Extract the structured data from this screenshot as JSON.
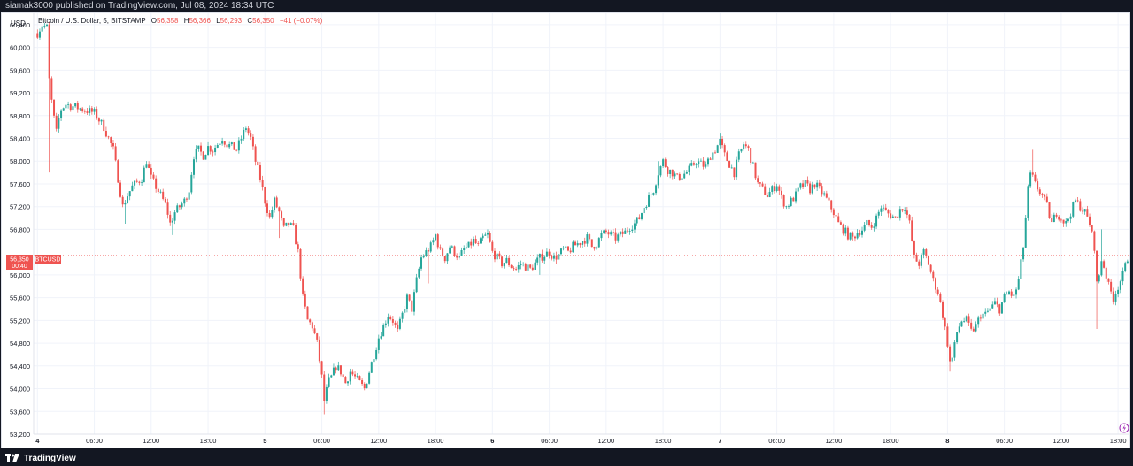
{
  "header": {
    "publish_note": "siamak3000 published on TradingView.com, Jul 08, 2024 18:34 UTC"
  },
  "footer": {
    "brand": "TradingView"
  },
  "legend": {
    "title": "Bitcoin / U.S. Dollar, 5, BITSTAMP",
    "o_label": "O",
    "o_value": "56,358",
    "h_label": "H",
    "h_value": "56,366",
    "l_label": "L",
    "l_value": "56,293",
    "c_label": "C",
    "c_value": "56,350",
    "change": "−41 (−0.07%)"
  },
  "currency_label": "USD",
  "price_tag": {
    "price": "56,350",
    "countdown": "00:40",
    "symbol": "BTCUSD"
  },
  "colors": {
    "up": "#26a69a",
    "down": "#ef5350",
    "grid": "#f0f3fa",
    "axis_text": "#131722"
  },
  "chart_data": {
    "type": "candlestick",
    "symbol": "BTCUSD",
    "interval": "5",
    "ylim": [
      53200,
      60600
    ],
    "y_ticks": [
      60400,
      60000,
      59600,
      59200,
      58800,
      58400,
      58000,
      57600,
      57200,
      56800,
      56000,
      55600,
      55200,
      54800,
      54400,
      54000,
      53600,
      53200
    ],
    "y_tick_labels": [
      "60,400",
      "60,000",
      "59,600",
      "59,200",
      "58,800",
      "58,400",
      "58,000",
      "57,600",
      "57,200",
      "56,800",
      "56,000",
      "55,600",
      "55,200",
      "54,800",
      "54,400",
      "54,000",
      "53,600",
      "53,200"
    ],
    "x_ticks": [
      {
        "label": "4",
        "t": 0,
        "major": true
      },
      {
        "label": "06:00",
        "t": 6,
        "major": false
      },
      {
        "label": "12:00",
        "t": 12,
        "major": false
      },
      {
        "label": "18:00",
        "t": 18,
        "major": false
      },
      {
        "label": "5",
        "t": 24,
        "major": true
      },
      {
        "label": "06:00",
        "t": 30,
        "major": false
      },
      {
        "label": "12:00",
        "t": 36,
        "major": false
      },
      {
        "label": "18:00",
        "t": 42,
        "major": false
      },
      {
        "label": "6",
        "t": 48,
        "major": true
      },
      {
        "label": "06:00",
        "t": 54,
        "major": false
      },
      {
        "label": "12:00",
        "t": 60,
        "major": false
      },
      {
        "label": "18:00",
        "t": 66,
        "major": false
      },
      {
        "label": "7",
        "t": 72,
        "major": true
      },
      {
        "label": "06:00",
        "t": 78,
        "major": false
      },
      {
        "label": "12:00",
        "t": 84,
        "major": false
      },
      {
        "label": "18:00",
        "t": 90,
        "major": false
      },
      {
        "label": "8",
        "t": 96,
        "major": true
      },
      {
        "label": "06:00",
        "t": 102,
        "major": false
      },
      {
        "label": "12:00",
        "t": 108,
        "major": false
      },
      {
        "label": "18:00",
        "t": 114,
        "major": false
      }
    ],
    "xlim_hours": [
      -0.4,
      115.2
    ],
    "last_price": 56350,
    "price_path": [
      [
        0.0,
        60250
      ],
      [
        0.5,
        60400
      ],
      [
        1.0,
        60350
      ],
      [
        1.2,
        59500
      ],
      [
        1.6,
        58900
      ],
      [
        2.0,
        58500
      ],
      [
        2.4,
        58900
      ],
      [
        3.0,
        59000
      ],
      [
        4.0,
        58950
      ],
      [
        5.0,
        58900
      ],
      [
        6.0,
        58850
      ],
      [
        7.0,
        58600
      ],
      [
        8.0,
        58200
      ],
      [
        8.6,
        57600
      ],
      [
        9.0,
        57200
      ],
      [
        9.5,
        57400
      ],
      [
        10.0,
        57550
      ],
      [
        11.0,
        57700
      ],
      [
        11.5,
        58000
      ],
      [
        12.0,
        57700
      ],
      [
        13.0,
        57400
      ],
      [
        13.6,
        57200
      ],
      [
        14.0,
        56900
      ],
      [
        14.5,
        57100
      ],
      [
        15.0,
        57200
      ],
      [
        15.5,
        57300
      ],
      [
        16.0,
        57500
      ],
      [
        16.5,
        58100
      ],
      [
        17.0,
        58200
      ],
      [
        17.5,
        58100
      ],
      [
        18.0,
        58250
      ],
      [
        18.5,
        58200
      ],
      [
        19.0,
        58300
      ],
      [
        19.5,
        58400
      ],
      [
        20.0,
        58300
      ],
      [
        21.0,
        58200
      ],
      [
        21.5,
        58400
      ],
      [
        22.0,
        58600
      ],
      [
        22.5,
        58400
      ],
      [
        23.0,
        58000
      ],
      [
        23.5,
        57700
      ],
      [
        24.0,
        57300
      ],
      [
        24.5,
        57000
      ],
      [
        25.0,
        57300
      ],
      [
        25.5,
        57100
      ],
      [
        26.0,
        56800
      ],
      [
        26.5,
        56900
      ],
      [
        27.0,
        56800
      ],
      [
        27.5,
        56400
      ],
      [
        28.0,
        55600
      ],
      [
        28.5,
        55200
      ],
      [
        29.0,
        55100
      ],
      [
        29.5,
        54800
      ],
      [
        30.0,
        54200
      ],
      [
        30.3,
        53700
      ],
      [
        30.6,
        54100
      ],
      [
        31.0,
        54200
      ],
      [
        31.5,
        54400
      ],
      [
        32.0,
        54300
      ],
      [
        32.5,
        54100
      ],
      [
        33.0,
        54300
      ],
      [
        33.5,
        54200
      ],
      [
        34.0,
        54100
      ],
      [
        34.5,
        54000
      ],
      [
        35.0,
        54300
      ],
      [
        35.5,
        54600
      ],
      [
        36.0,
        54900
      ],
      [
        36.5,
        55100
      ],
      [
        37.0,
        55300
      ],
      [
        37.5,
        55200
      ],
      [
        38.0,
        55000
      ],
      [
        38.5,
        55300
      ],
      [
        39.0,
        55600
      ],
      [
        39.5,
        55400
      ],
      [
        40.0,
        55900
      ],
      [
        40.5,
        56300
      ],
      [
        41.0,
        56400
      ],
      [
        41.5,
        56500
      ],
      [
        42.0,
        56700
      ],
      [
        42.5,
        56400
      ],
      [
        43.0,
        56300
      ],
      [
        43.5,
        56500
      ],
      [
        44.0,
        56400
      ],
      [
        44.5,
        56300
      ],
      [
        45.0,
        56450
      ],
      [
        45.5,
        56500
      ],
      [
        46.0,
        56600
      ],
      [
        46.5,
        56500
      ],
      [
        47.0,
        56650
      ],
      [
        47.5,
        56700
      ],
      [
        48.0,
        56400
      ],
      [
        48.5,
        56300
      ],
      [
        49.0,
        56200
      ],
      [
        49.5,
        56250
      ],
      [
        50.0,
        56150
      ],
      [
        50.5,
        56100
      ],
      [
        51.0,
        56200
      ],
      [
        51.5,
        56150
      ],
      [
        52.0,
        56100
      ],
      [
        52.5,
        56200
      ],
      [
        53.0,
        56300
      ],
      [
        53.5,
        56350
      ],
      [
        54.0,
        56400
      ],
      [
        54.5,
        56300
      ],
      [
        55.0,
        56350
      ],
      [
        55.5,
        56450
      ],
      [
        56.0,
        56400
      ],
      [
        56.5,
        56500
      ],
      [
        57.0,
        56550
      ],
      [
        57.5,
        56600
      ],
      [
        58.0,
        56650
      ],
      [
        58.5,
        56500
      ],
      [
        59.0,
        56550
      ],
      [
        59.5,
        56700
      ],
      [
        60.0,
        56750
      ],
      [
        60.5,
        56700
      ],
      [
        61.0,
        56650
      ],
      [
        61.5,
        56700
      ],
      [
        62.0,
        56750
      ],
      [
        62.5,
        56850
      ],
      [
        63.0,
        56900
      ],
      [
        63.5,
        57000
      ],
      [
        64.0,
        57200
      ],
      [
        64.5,
        57350
      ],
      [
        65.0,
        57500
      ],
      [
        65.5,
        57800
      ],
      [
        66.0,
        58000
      ],
      [
        66.5,
        57850
      ],
      [
        67.0,
        57800
      ],
      [
        67.5,
        57700
      ],
      [
        68.0,
        57750
      ],
      [
        68.5,
        57800
      ],
      [
        69.0,
        57900
      ],
      [
        69.5,
        58000
      ],
      [
        70.0,
        57950
      ],
      [
        70.5,
        57900
      ],
      [
        71.0,
        58100
      ],
      [
        71.5,
        58200
      ],
      [
        72.0,
        58350
      ],
      [
        72.5,
        58100
      ],
      [
        73.0,
        57950
      ],
      [
        73.5,
        57800
      ],
      [
        74.0,
        58100
      ],
      [
        74.5,
        58300
      ],
      [
        75.0,
        58200
      ],
      [
        75.5,
        57900
      ],
      [
        76.0,
        57600
      ],
      [
        76.5,
        57500
      ],
      [
        77.0,
        57400
      ],
      [
        77.5,
        57500
      ],
      [
        78.0,
        57600
      ],
      [
        78.5,
        57350
      ],
      [
        79.0,
        57200
      ],
      [
        79.5,
        57300
      ],
      [
        80.0,
        57400
      ],
      [
        80.5,
        57550
      ],
      [
        81.0,
        57600
      ],
      [
        81.5,
        57500
      ],
      [
        82.0,
        57600
      ],
      [
        82.5,
        57500
      ],
      [
        83.0,
        57400
      ],
      [
        83.5,
        57250
      ],
      [
        84.0,
        57100
      ],
      [
        84.5,
        56900
      ],
      [
        85.0,
        56800
      ],
      [
        85.5,
        56700
      ],
      [
        86.0,
        56650
      ],
      [
        86.5,
        56750
      ],
      [
        87.0,
        56800
      ],
      [
        87.5,
        56900
      ],
      [
        88.0,
        56850
      ],
      [
        88.5,
        57000
      ],
      [
        89.0,
        57200
      ],
      [
        89.5,
        57100
      ],
      [
        90.0,
        57050
      ],
      [
        90.5,
        57000
      ],
      [
        91.0,
        57150
      ],
      [
        91.5,
        57200
      ],
      [
        92.0,
        56900
      ],
      [
        92.5,
        56300
      ],
      [
        93.0,
        56200
      ],
      [
        93.5,
        56400
      ],
      [
        94.0,
        56200
      ],
      [
        94.5,
        55900
      ],
      [
        95.0,
        55700
      ],
      [
        95.5,
        55300
      ],
      [
        96.0,
        54800
      ],
      [
        96.3,
        54400
      ],
      [
        96.6,
        54600
      ],
      [
        97.0,
        55000
      ],
      [
        97.5,
        55200
      ],
      [
        98.0,
        55200
      ],
      [
        98.5,
        55000
      ],
      [
        99.0,
        55100
      ],
      [
        99.5,
        55300
      ],
      [
        100.0,
        55300
      ],
      [
        100.5,
        55400
      ],
      [
        101.0,
        55500
      ],
      [
        101.5,
        55400
      ],
      [
        102.0,
        55600
      ],
      [
        102.5,
        55700
      ],
      [
        103.0,
        55600
      ],
      [
        103.5,
        55900
      ],
      [
        104.0,
        56500
      ],
      [
        104.5,
        57500
      ],
      [
        104.8,
        57800
      ],
      [
        105.2,
        57600
      ],
      [
        105.6,
        57500
      ],
      [
        106.0,
        57400
      ],
      [
        106.5,
        57200
      ],
      [
        107.0,
        56900
      ],
      [
        107.5,
        57100
      ],
      [
        108.0,
        57000
      ],
      [
        108.5,
        56900
      ],
      [
        109.0,
        57100
      ],
      [
        109.5,
        57300
      ],
      [
        110.0,
        57200
      ],
      [
        110.5,
        57100
      ],
      [
        111.0,
        56900
      ],
      [
        111.5,
        56500
      ],
      [
        111.8,
        55700
      ],
      [
        112.2,
        56300
      ],
      [
        112.6,
        56100
      ],
      [
        113.0,
        55800
      ],
      [
        113.5,
        55600
      ],
      [
        114.0,
        55800
      ],
      [
        114.5,
        56000
      ],
      [
        115.0,
        56300
      ]
    ],
    "wick_spikes": [
      {
        "t": 1.2,
        "low": 57800
      },
      {
        "t": 9.2,
        "low": 56900
      },
      {
        "t": 14.2,
        "low": 56700
      },
      {
        "t": 25.5,
        "low": 56650
      },
      {
        "t": 30.3,
        "low": 53550
      },
      {
        "t": 41.2,
        "low": 55850
      },
      {
        "t": 53.0,
        "low": 56000
      },
      {
        "t": 65.6,
        "high": 58000
      },
      {
        "t": 72.0,
        "high": 58500
      },
      {
        "t": 84.5,
        "low": 57050
      },
      {
        "t": 96.3,
        "low": 54300
      },
      {
        "t": 104.9,
        "high": 58200
      },
      {
        "t": 111.8,
        "low": 55050
      },
      {
        "t": 112.3,
        "high": 56800
      }
    ]
  }
}
